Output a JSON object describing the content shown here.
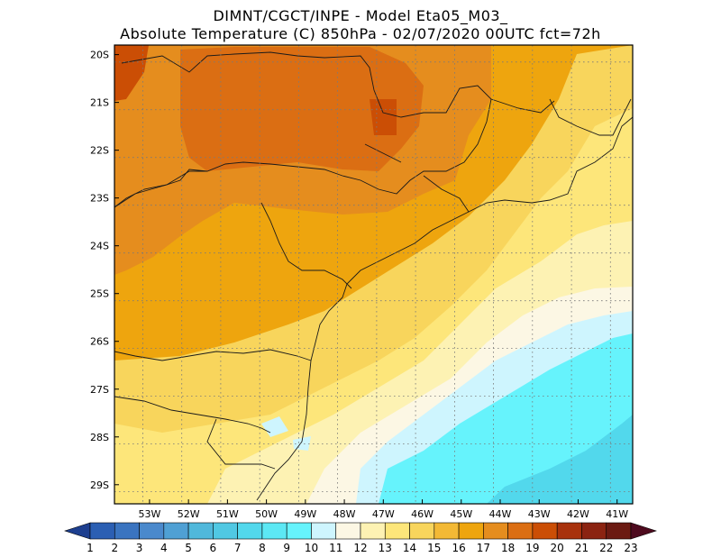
{
  "title": {
    "line1": "DIMNT/CGCT/INPE  -   Model Eta05_M03_",
    "line2": "Absolute Temperature (C) 850hPa  -   02/07/2020 00UTC fct=72h"
  },
  "map": {
    "lon_range": [
      -53.9,
      -40.6
    ],
    "lat_range": [
      -29.4,
      -19.8
    ],
    "lon_ticks": [
      -53,
      -52,
      -51,
      -50,
      -49,
      -48,
      -47,
      -46,
      -45,
      -44,
      -43,
      -42,
      -41
    ],
    "lat_ticks": [
      -20,
      -21,
      -22,
      -23,
      -24,
      -25,
      -26,
      -27,
      -28,
      -29
    ],
    "lon_tick_labels": [
      "53W",
      "52W",
      "51W",
      "50W",
      "49W",
      "48W",
      "47W",
      "46W",
      "45W",
      "44W",
      "43W",
      "42W",
      "41W"
    ],
    "lat_tick_labels": [
      "20S",
      "21S",
      "22S",
      "23S",
      "24S",
      "25S",
      "26S",
      "27S",
      "28S",
      "29S"
    ],
    "gridlines": "dotted"
  },
  "colorbar": {
    "labels": [
      "1",
      "2",
      "3",
      "4",
      "5",
      "6",
      "7",
      "8",
      "9",
      "10",
      "11",
      "12",
      "13",
      "14",
      "15",
      "16",
      "17",
      "18",
      "19",
      "20",
      "21",
      "22",
      "23"
    ],
    "colors": [
      "#1d3f8f",
      "#2b5fb3",
      "#3a74c0",
      "#4a89cc",
      "#4fa0d4",
      "#50b8db",
      "#50c8e3",
      "#52d8ec",
      "#5ce8f4",
      "#66f3fc",
      "#cef5fe",
      "#fcf7e4",
      "#fdf2b3",
      "#fde67a",
      "#f8d55c",
      "#f3b935",
      "#eea50e",
      "#e58d1e",
      "#db6e13",
      "#cb4e05",
      "#a8320d",
      "#8b2311",
      "#6b1a12",
      "#4e0a1e"
    ]
  }
}
